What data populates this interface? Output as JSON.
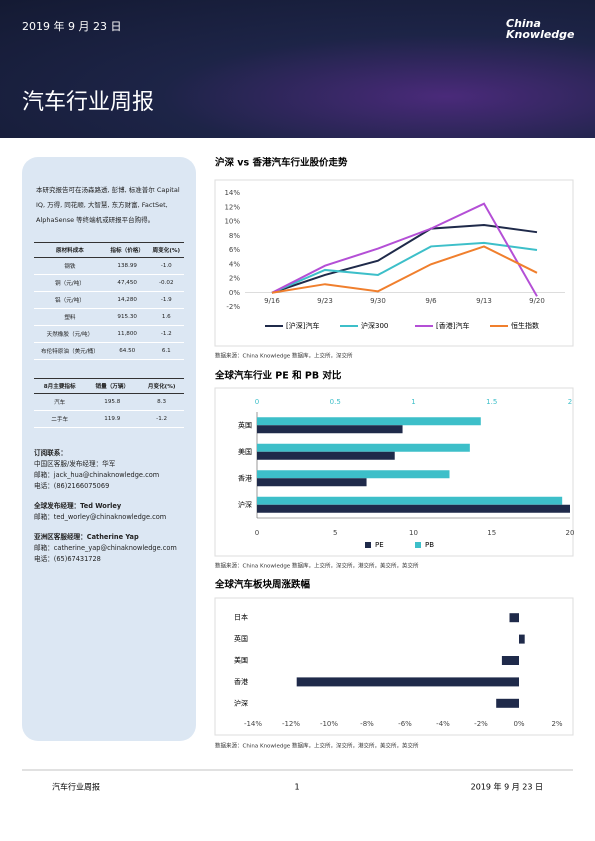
{
  "header": {
    "date": "2019 年 9 月 23 日",
    "logo": "China Knowledge",
    "title": "汽车行业周报"
  },
  "sidebar": {
    "intro": "本研究报告可在汤森路透, 彭博, 标准普尔 Capital IQ, 万得, 同花顺, 大智慧, 东方财富, FactSet, AlphaSense 等终端机或研报平台购得。",
    "table1": {
      "headers": [
        "原材料成本",
        "指标（价格）",
        "周变化(%)"
      ],
      "rows": [
        [
          "钢铁",
          "138.99",
          "-1.0"
        ],
        [
          "铜（元/吨）",
          "47,450",
          "-0.02"
        ],
        [
          "铝（元/吨）",
          "14,280",
          "-1.9"
        ],
        [
          "塑料",
          "915.30",
          "1.6"
        ],
        [
          "天然橡胶（元/吨）",
          "11,800",
          "-1.2"
        ],
        [
          "布伦特原油（美元/桶）",
          "64.50",
          "6.1"
        ]
      ]
    },
    "table2": {
      "headers": [
        "8月主要指标",
        "销量（万辆）",
        "月变化(%)"
      ],
      "rows": [
        [
          "汽车",
          "195.8",
          "8.3"
        ],
        [
          "二手车",
          "119.9",
          "-1.2"
        ]
      ]
    },
    "contacts": [
      {
        "heading": "订阅联系：",
        "lines": [
          "中国区客服/发布经理：华军",
          "邮箱：jack_hua@chinaknowledge.com",
          "电话：(86)2166075069"
        ]
      },
      {
        "heading": "全球发布经理：Ted Worley",
        "lines": [
          "邮箱：ted_worley@chinaknowledge.com"
        ]
      },
      {
        "heading": "亚洲区客服经理：Catherine Yap",
        "lines": [
          "邮箱：catherine_yap@chinaknowledge.com",
          "电话：(65)67431728"
        ]
      }
    ]
  },
  "chart_data": [
    {
      "type": "line",
      "title": "沪深 vs 香港汽车行业股价走势",
      "source": "数据来源：China Knowledge 数据库，上交所，深交所",
      "categories": [
        "9/16",
        "9/23",
        "9/30",
        "9/6",
        "9/13",
        "9/20"
      ],
      "series": [
        {
          "name": "[沪深]汽车",
          "color": "#1f2a4a",
          "values": [
            0,
            2.5,
            4.5,
            9,
            9.5,
            8.5
          ]
        },
        {
          "name": "沪深300",
          "color": "#3dbfc9",
          "values": [
            0,
            3.2,
            2.5,
            6.5,
            7,
            6
          ]
        },
        {
          "name": "[香港]汽车",
          "color": "#b44fd6",
          "values": [
            0,
            3.8,
            6.2,
            9,
            12.5,
            -0.5
          ]
        },
        {
          "name": "恒生指数",
          "color": "#f07f2d",
          "values": [
            0,
            1.2,
            0.2,
            4,
            6.5,
            2.8
          ]
        }
      ],
      "ylim": [
        -2,
        14
      ],
      "yticks": [
        {
          "value": -2,
          "label": "-2%"
        },
        {
          "value": 0,
          "label": "0%"
        },
        {
          "value": 2,
          "label": "2%"
        },
        {
          "value": 4,
          "label": "4%"
        },
        {
          "value": 6,
          "label": "6%"
        },
        {
          "value": 8,
          "label": "8%"
        },
        {
          "value": 10,
          "label": "10%"
        },
        {
          "value": 12,
          "label": "12%"
        },
        {
          "value": 14,
          "label": "14%"
        }
      ]
    },
    {
      "type": "bar",
      "orientation": "horizontal",
      "title": "全球汽车行业 PE 和 PB 对比",
      "source": "数据来源：China Knowledge 数据库，上交所，深交所，港交所，美交所，英交所",
      "categories": [
        "英国",
        "美国",
        "香港",
        "沪深"
      ],
      "series": [
        {
          "name": "PE",
          "color": "#1f2a4a",
          "values": [
            9.3,
            8.8,
            7,
            20
          ]
        },
        {
          "name": "PB",
          "color": "#3dbfc9",
          "axis": "x2",
          "values": [
            1.43,
            1.36,
            1.23,
            1.95
          ]
        }
      ],
      "xlim": [
        0,
        20
      ],
      "xticks": [
        0,
        5,
        10,
        15,
        20
      ],
      "x2lim": [
        0,
        2
      ],
      "x2ticks": [
        0,
        0.5,
        1,
        1.5,
        2
      ]
    },
    {
      "type": "bar",
      "orientation": "horizontal",
      "title": "全球汽车板块周涨跌幅",
      "source": "数据来源：China Knowledge 数据库，上交所，深交所，港交所，美交所，英交所",
      "categories": [
        "日本",
        "英国",
        "美国",
        "香港",
        "沪深"
      ],
      "color": "#1f2a4a",
      "values": [
        -0.5,
        0.3,
        -0.9,
        -11.7,
        -1.2
      ],
      "xlim": [
        -14,
        2
      ],
      "xticks": [
        {
          "value": -14,
          "label": "-14%"
        },
        {
          "value": -12,
          "label": "-12%"
        },
        {
          "value": -10,
          "label": "-10%"
        },
        {
          "value": -8,
          "label": "-8%"
        },
        {
          "value": -6,
          "label": "-6%"
        },
        {
          "value": -4,
          "label": "-4%"
        },
        {
          "value": -2,
          "label": "-2%"
        },
        {
          "value": 0,
          "label": "0%"
        },
        {
          "value": 2,
          "label": "2%"
        }
      ]
    }
  ],
  "footer": {
    "left": "汽车行业周报",
    "page": "1",
    "right": "2019 年 9 月 23 日"
  }
}
